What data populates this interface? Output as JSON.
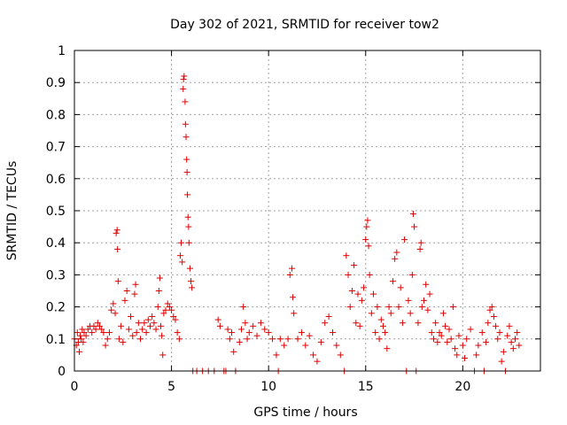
{
  "chart_data": {
    "type": "scatter",
    "title": "Day 302 of 2021, SRMTID for receiver tow2",
    "xlabel": "GPS time / hours",
    "ylabel": "SRMTID / TECUs",
    "xlim": [
      0,
      24
    ],
    "ylim": [
      0,
      1
    ],
    "xticks": [
      0,
      5,
      10,
      15,
      20
    ],
    "xtick_labels": [
      "0",
      "5",
      "10",
      "15",
      "20"
    ],
    "yticks": [
      0,
      0.1,
      0.2,
      0.3,
      0.4,
      0.5,
      0.6,
      0.7,
      0.8,
      0.9,
      1
    ],
    "ytick_labels": [
      "0",
      "0.1",
      "0.2",
      "0.3",
      "0.4",
      "0.5",
      "0.6",
      "0.7",
      "0.8",
      "0.9",
      "1"
    ],
    "grid": true,
    "marker": "+",
    "color": "#e00000",
    "series": [
      {
        "name": "SRMTID",
        "points": [
          [
            0.0,
            0.1
          ],
          [
            0.1,
            0.08
          ],
          [
            0.15,
            0.12
          ],
          [
            0.2,
            0.09
          ],
          [
            0.25,
            0.06
          ],
          [
            0.3,
            0.11
          ],
          [
            0.35,
            0.1
          ],
          [
            0.4,
            0.13
          ],
          [
            0.45,
            0.09
          ],
          [
            0.5,
            0.12
          ],
          [
            0.6,
            0.11
          ],
          [
            0.7,
            0.13
          ],
          [
            0.8,
            0.14
          ],
          [
            0.9,
            0.12
          ],
          [
            1.0,
            0.14
          ],
          [
            1.1,
            0.13
          ],
          [
            1.2,
            0.15
          ],
          [
            1.3,
            0.14
          ],
          [
            1.4,
            0.13
          ],
          [
            1.5,
            0.12
          ],
          [
            1.6,
            0.08
          ],
          [
            1.7,
            0.1
          ],
          [
            1.8,
            0.12
          ],
          [
            1.9,
            0.19
          ],
          [
            2.0,
            0.21
          ],
          [
            2.1,
            0.18
          ],
          [
            2.15,
            0.43
          ],
          [
            2.2,
            0.44
          ],
          [
            2.22,
            0.38
          ],
          [
            2.25,
            0.28
          ],
          [
            2.3,
            0.1
          ],
          [
            2.4,
            0.14
          ],
          [
            2.5,
            0.09
          ],
          [
            2.6,
            0.22
          ],
          [
            2.7,
            0.25
          ],
          [
            2.8,
            0.13
          ],
          [
            2.9,
            0.17
          ],
          [
            3.0,
            0.11
          ],
          [
            3.1,
            0.24
          ],
          [
            3.15,
            0.27
          ],
          [
            3.2,
            0.12
          ],
          [
            3.3,
            0.15
          ],
          [
            3.4,
            0.1
          ],
          [
            3.5,
            0.13
          ],
          [
            3.6,
            0.15
          ],
          [
            3.7,
            0.12
          ],
          [
            3.8,
            0.16
          ],
          [
            3.9,
            0.14
          ],
          [
            4.0,
            0.17
          ],
          [
            4.1,
            0.15
          ],
          [
            4.2,
            0.13
          ],
          [
            4.3,
            0.2
          ],
          [
            4.35,
            0.25
          ],
          [
            4.4,
            0.29
          ],
          [
            4.45,
            0.14
          ],
          [
            4.5,
            0.11
          ],
          [
            4.55,
            0.05
          ],
          [
            4.6,
            0.18
          ],
          [
            4.7,
            0.19
          ],
          [
            4.8,
            0.21
          ],
          [
            4.9,
            0.2
          ],
          [
            5.0,
            0.19
          ],
          [
            5.1,
            0.17
          ],
          [
            5.2,
            0.16
          ],
          [
            5.3,
            0.12
          ],
          [
            5.4,
            0.1
          ],
          [
            5.45,
            0.36
          ],
          [
            5.5,
            0.4
          ],
          [
            5.55,
            0.34
          ],
          [
            5.6,
            0.88
          ],
          [
            5.62,
            0.91
          ],
          [
            5.65,
            0.92
          ],
          [
            5.7,
            0.84
          ],
          [
            5.72,
            0.77
          ],
          [
            5.75,
            0.73
          ],
          [
            5.78,
            0.66
          ],
          [
            5.8,
            0.62
          ],
          [
            5.82,
            0.55
          ],
          [
            5.85,
            0.48
          ],
          [
            5.88,
            0.45
          ],
          [
            5.9,
            0.4
          ],
          [
            5.95,
            0.32
          ],
          [
            6.0,
            0.28
          ],
          [
            6.05,
            0.26
          ],
          [
            6.1,
            0.0
          ],
          [
            6.3,
            0.0
          ],
          [
            6.6,
            0.0
          ],
          [
            6.9,
            0.0
          ],
          [
            7.2,
            0.0
          ],
          [
            7.4,
            0.16
          ],
          [
            7.5,
            0.14
          ],
          [
            7.7,
            0.0
          ],
          [
            7.8,
            0.0
          ],
          [
            7.9,
            0.13
          ],
          [
            8.0,
            0.1
          ],
          [
            8.1,
            0.12
          ],
          [
            8.2,
            0.06
          ],
          [
            8.3,
            0.0
          ],
          [
            8.5,
            0.09
          ],
          [
            8.6,
            0.13
          ],
          [
            8.7,
            0.2
          ],
          [
            8.8,
            0.15
          ],
          [
            8.9,
            0.1
          ],
          [
            9.0,
            0.12
          ],
          [
            9.2,
            0.14
          ],
          [
            9.4,
            0.11
          ],
          [
            9.6,
            0.15
          ],
          [
            9.8,
            0.13
          ],
          [
            10.0,
            0.12
          ],
          [
            10.2,
            0.1
          ],
          [
            10.4,
            0.05
          ],
          [
            10.5,
            0.0
          ],
          [
            10.6,
            0.1
          ],
          [
            10.8,
            0.08
          ],
          [
            11.0,
            0.1
          ],
          [
            11.1,
            0.3
          ],
          [
            11.2,
            0.32
          ],
          [
            11.25,
            0.23
          ],
          [
            11.3,
            0.18
          ],
          [
            11.5,
            0.1
          ],
          [
            11.7,
            0.12
          ],
          [
            11.9,
            0.08
          ],
          [
            12.1,
            0.11
          ],
          [
            12.3,
            0.05
          ],
          [
            12.5,
            0.03
          ],
          [
            12.7,
            0.09
          ],
          [
            12.9,
            0.15
          ],
          [
            13.1,
            0.17
          ],
          [
            13.3,
            0.12
          ],
          [
            13.5,
            0.08
          ],
          [
            13.7,
            0.05
          ],
          [
            13.9,
            0.0
          ],
          [
            14.0,
            0.36
          ],
          [
            14.1,
            0.3
          ],
          [
            14.2,
            0.2
          ],
          [
            14.3,
            0.25
          ],
          [
            14.4,
            0.33
          ],
          [
            14.5,
            0.15
          ],
          [
            14.6,
            0.24
          ],
          [
            14.7,
            0.14
          ],
          [
            14.8,
            0.22
          ],
          [
            14.9,
            0.26
          ],
          [
            15.0,
            0.41
          ],
          [
            15.05,
            0.45
          ],
          [
            15.1,
            0.47
          ],
          [
            15.15,
            0.39
          ],
          [
            15.2,
            0.3
          ],
          [
            15.3,
            0.18
          ],
          [
            15.4,
            0.24
          ],
          [
            15.5,
            0.12
          ],
          [
            15.6,
            0.2
          ],
          [
            15.7,
            0.1
          ],
          [
            15.8,
            0.16
          ],
          [
            15.9,
            0.14
          ],
          [
            16.0,
            0.12
          ],
          [
            16.1,
            0.07
          ],
          [
            16.2,
            0.2
          ],
          [
            16.3,
            0.18
          ],
          [
            16.4,
            0.28
          ],
          [
            16.5,
            0.35
          ],
          [
            16.6,
            0.37
          ],
          [
            16.7,
            0.2
          ],
          [
            16.8,
            0.26
          ],
          [
            16.9,
            0.15
          ],
          [
            17.0,
            0.41
          ],
          [
            17.1,
            0.0
          ],
          [
            17.2,
            0.22
          ],
          [
            17.3,
            0.18
          ],
          [
            17.4,
            0.3
          ],
          [
            17.45,
            0.49
          ],
          [
            17.5,
            0.45
          ],
          [
            17.6,
            0.0
          ],
          [
            17.7,
            0.15
          ],
          [
            17.8,
            0.38
          ],
          [
            17.85,
            0.4
          ],
          [
            17.9,
            0.2
          ],
          [
            18.0,
            0.22
          ],
          [
            18.1,
            0.27
          ],
          [
            18.2,
            0.19
          ],
          [
            18.3,
            0.24
          ],
          [
            18.4,
            0.12
          ],
          [
            18.5,
            0.1
          ],
          [
            18.6,
            0.15
          ],
          [
            18.7,
            0.09
          ],
          [
            18.8,
            0.12
          ],
          [
            18.9,
            0.11
          ],
          [
            19.0,
            0.18
          ],
          [
            19.1,
            0.14
          ],
          [
            19.2,
            0.09
          ],
          [
            19.3,
            0.13
          ],
          [
            19.4,
            0.1
          ],
          [
            19.5,
            0.2
          ],
          [
            19.6,
            0.07
          ],
          [
            19.7,
            0.05
          ],
          [
            19.8,
            0.11
          ],
          [
            20.0,
            0.08
          ],
          [
            20.1,
            0.04
          ],
          [
            20.2,
            0.1
          ],
          [
            20.4,
            0.13
          ],
          [
            20.6,
            0.0
          ],
          [
            20.7,
            0.05
          ],
          [
            20.8,
            0.08
          ],
          [
            21.0,
            0.12
          ],
          [
            21.1,
            0.0
          ],
          [
            21.2,
            0.09
          ],
          [
            21.3,
            0.15
          ],
          [
            21.4,
            0.19
          ],
          [
            21.5,
            0.2
          ],
          [
            21.6,
            0.17
          ],
          [
            21.7,
            0.14
          ],
          [
            21.8,
            0.1
          ],
          [
            21.9,
            0.12
          ],
          [
            22.0,
            0.03
          ],
          [
            22.1,
            0.06
          ],
          [
            22.2,
            0.0
          ],
          [
            22.3,
            0.11
          ],
          [
            22.4,
            0.14
          ],
          [
            22.5,
            0.09
          ],
          [
            22.6,
            0.07
          ],
          [
            22.7,
            0.1
          ],
          [
            22.8,
            0.12
          ],
          [
            22.9,
            0.08
          ]
        ]
      }
    ]
  }
}
